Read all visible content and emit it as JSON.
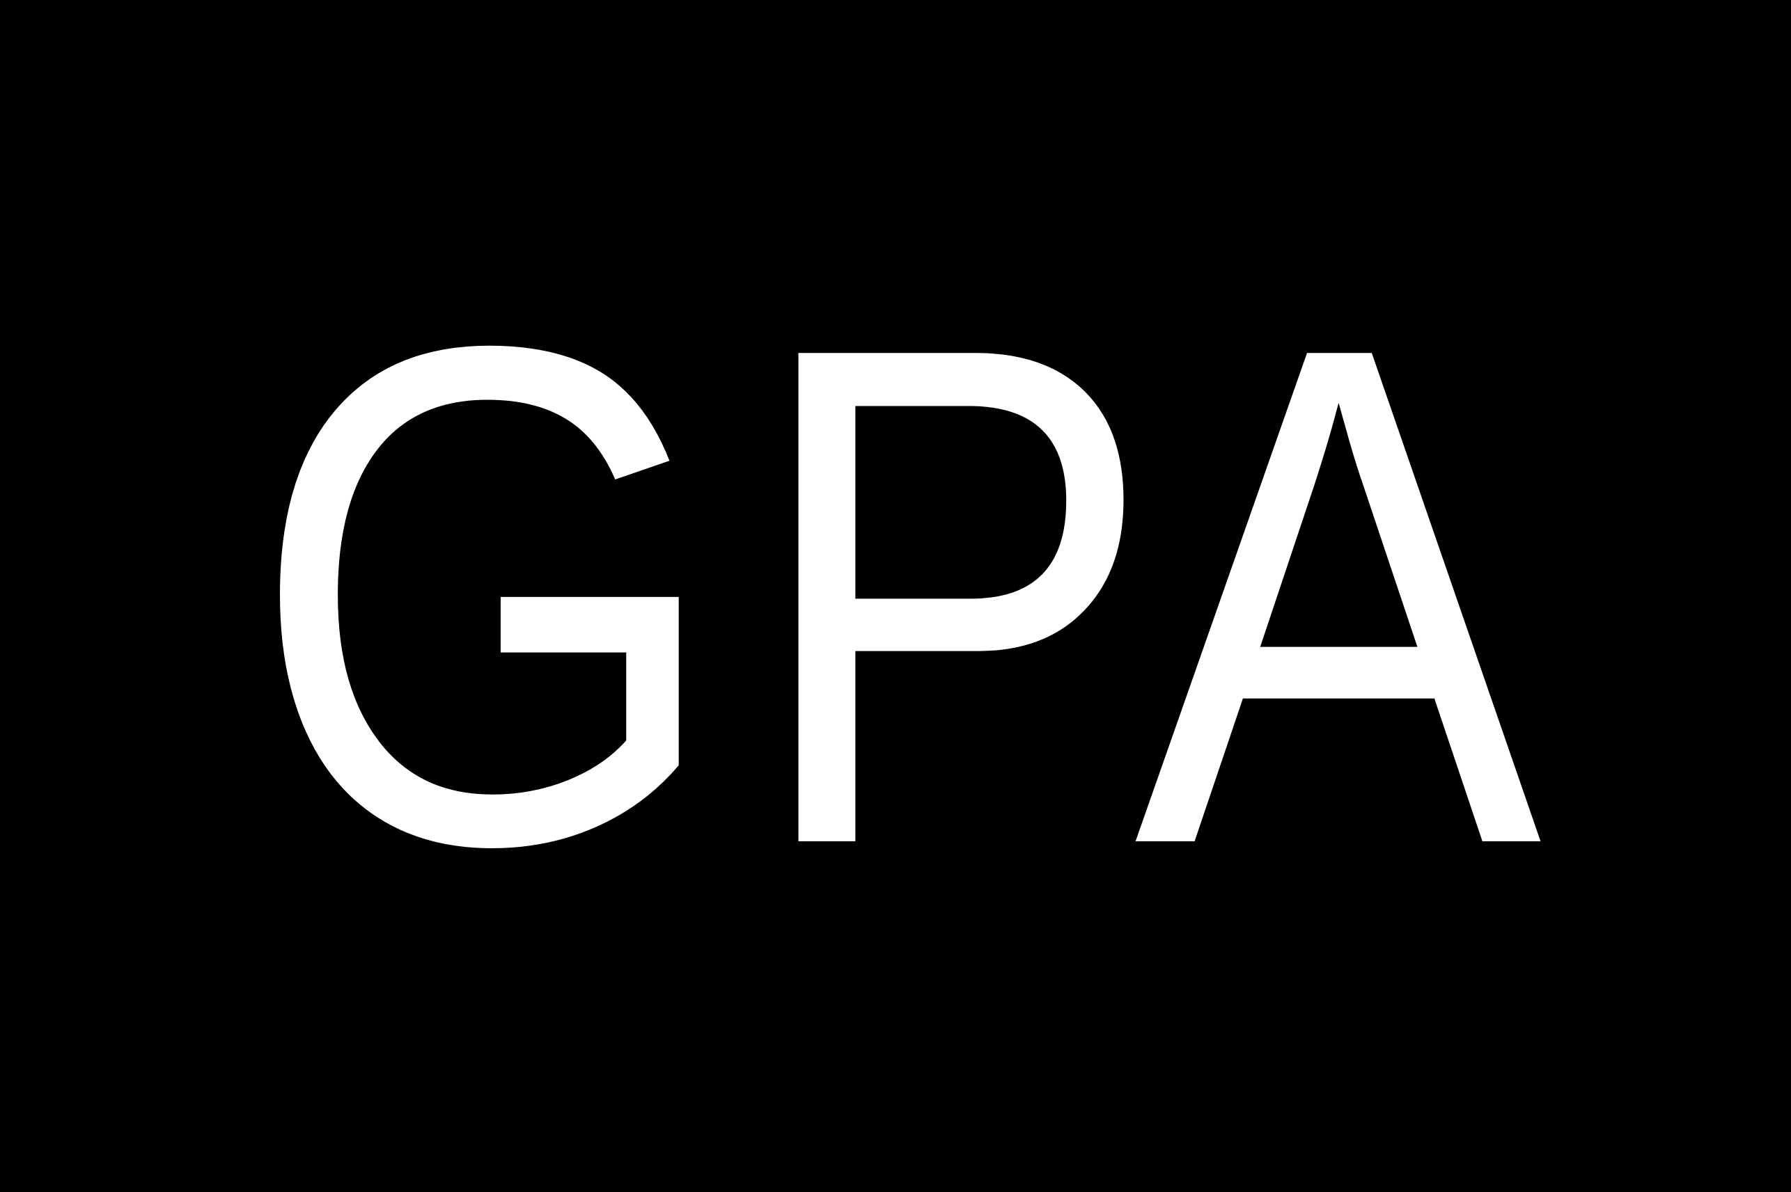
{
  "logo": {
    "text": "GPA",
    "text_color": "#ffffff",
    "background_color": "#000000"
  }
}
